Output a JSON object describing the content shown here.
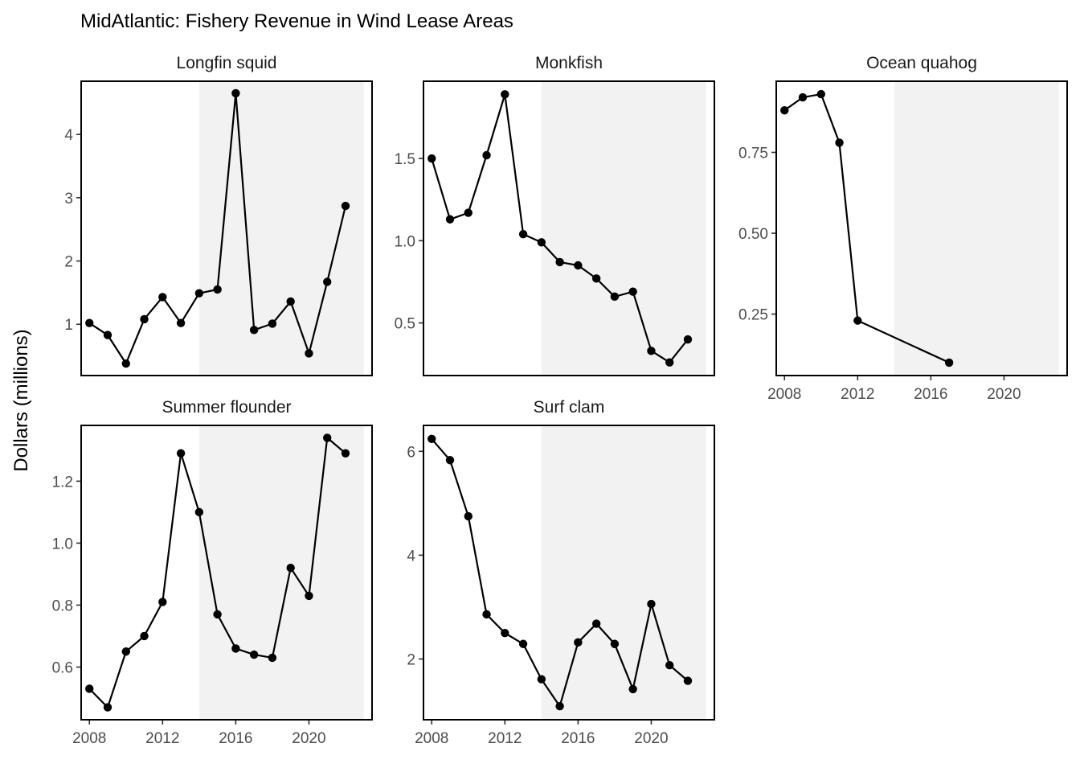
{
  "title": "MidAtlantic: Fishery Revenue in Wind Lease Areas",
  "ylabel": "Dollars (millions)",
  "chart_data": {
    "type": "line",
    "title": "MidAtlantic: Fishery Revenue in Wind Lease Areas",
    "ylabel": "Dollars (millions)",
    "xlabel": "",
    "x_ticks": [
      2008,
      2012,
      2016,
      2020
    ],
    "shaded_x_range": [
      2014,
      2023
    ],
    "panels": [
      {
        "name": "Longfin squid",
        "x": [
          2008,
          2009,
          2010,
          2011,
          2012,
          2013,
          2014,
          2015,
          2016,
          2017,
          2018,
          2019,
          2020,
          2021,
          2022
        ],
        "y": [
          1.02,
          0.83,
          0.38,
          1.08,
          1.43,
          1.02,
          1.49,
          1.55,
          4.65,
          0.91,
          1.01,
          1.36,
          0.54,
          1.67,
          2.87
        ],
        "ylim": [
          0.19,
          4.84
        ],
        "yticks": [
          1,
          2,
          3,
          4
        ],
        "ytick_labels": [
          "1",
          "2",
          "3",
          "4"
        ]
      },
      {
        "name": "Monkfish",
        "x": [
          2008,
          2009,
          2010,
          2011,
          2012,
          2013,
          2014,
          2015,
          2016,
          2017,
          2018,
          2019,
          2020,
          2021,
          2022
        ],
        "y": [
          1.5,
          1.13,
          1.17,
          1.52,
          1.89,
          1.04,
          0.99,
          0.87,
          0.85,
          0.77,
          0.66,
          0.69,
          0.33,
          0.26,
          0.4
        ],
        "ylim": [
          0.18,
          1.97
        ],
        "yticks": [
          0.5,
          1.0,
          1.5
        ],
        "ytick_labels": [
          "0.5",
          "1.0",
          "1.5"
        ]
      },
      {
        "name": "Ocean quahog",
        "x": [
          2008,
          2009,
          2010,
          2011,
          2012,
          2017
        ],
        "y": [
          0.88,
          0.92,
          0.93,
          0.78,
          0.23,
          0.1
        ],
        "ylim": [
          0.06,
          0.97
        ],
        "yticks": [
          0.25,
          0.5,
          0.75
        ],
        "ytick_labels": [
          "0.25",
          "0.50",
          "0.75"
        ]
      },
      {
        "name": "Summer flounder",
        "x": [
          2008,
          2009,
          2010,
          2011,
          2012,
          2013,
          2014,
          2015,
          2016,
          2017,
          2018,
          2019,
          2020,
          2021,
          2022
        ],
        "y": [
          0.53,
          0.47,
          0.65,
          0.7,
          0.81,
          1.29,
          1.1,
          0.77,
          0.66,
          0.64,
          0.63,
          0.92,
          0.83,
          1.34,
          1.29
        ],
        "ylim": [
          0.43,
          1.38
        ],
        "yticks": [
          0.6,
          0.8,
          1.0,
          1.2
        ],
        "ytick_labels": [
          "0.6",
          "0.8",
          "1.0",
          "1.2"
        ]
      },
      {
        "name": "Surf clam",
        "x": [
          2008,
          2009,
          2010,
          2011,
          2012,
          2013,
          2014,
          2015,
          2016,
          2017,
          2018,
          2019,
          2020,
          2021,
          2022
        ],
        "y": [
          6.24,
          5.83,
          4.75,
          2.86,
          2.5,
          2.29,
          1.61,
          1.09,
          2.32,
          2.68,
          2.29,
          1.42,
          3.06,
          1.88,
          1.58
        ],
        "ylim": [
          0.83,
          6.5
        ],
        "yticks": [
          2,
          4,
          6
        ],
        "ytick_labels": [
          "2",
          "4",
          "6"
        ]
      }
    ]
  }
}
